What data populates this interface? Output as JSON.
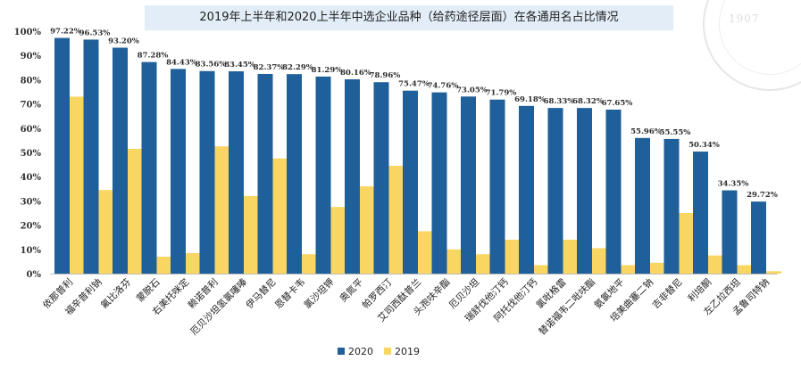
{
  "chart_data": {
    "type": "bar",
    "title": "2019年上半年和2020上半年中选企业品种（给药途径层面）在各通用名占比情况",
    "categories": [
      "依那普利",
      "福辛普利钠",
      "氟比洛芬",
      "蒙脱石",
      "右美托咪定",
      "赖诺普利",
      "厄贝沙坦氢氯噻嗪",
      "伊马替尼",
      "恩替卡韦",
      "氯沙坦钾",
      "奥氮平",
      "帕罗西汀",
      "艾司西酞普兰",
      "头孢呋辛酯",
      "厄贝沙坦",
      "瑞舒伐他汀钙",
      "阿托伐他汀钙",
      "氯吡格雷",
      "替诺福韦二吡呋酯",
      "氨氯地平",
      "培美曲塞二钠",
      "吉非替尼",
      "利培酮",
      "左乙拉西坦",
      "孟鲁司特钠"
    ],
    "series": [
      {
        "name": "2020",
        "color": "#1f5f9a",
        "values": [
          97.22,
          96.53,
          93.2,
          87.28,
          84.43,
          83.56,
          83.45,
          82.37,
          82.29,
          81.29,
          80.16,
          78.96,
          75.47,
          74.76,
          73.05,
          71.79,
          69.18,
          68.33,
          68.32,
          67.65,
          55.96,
          55.55,
          50.34,
          34.35,
          29.72
        ],
        "labels": [
          "97.22%",
          "96.53%",
          "93.20%",
          "87.28%",
          "84.43%",
          "83.56%",
          "83.45%",
          "82.37%",
          "82.29%",
          "81.29%",
          "80.16%",
          "78.96%",
          "75.47%",
          "74.76%",
          "73.05%",
          "71.79%",
          "69.18%",
          "68.33%",
          "68.32%",
          "67.65%",
          "55.96%",
          "55.55%",
          "50.34%",
          "34.35%",
          "29.72%"
        ]
      },
      {
        "name": "2019",
        "color": "#f9d562",
        "values": [
          73,
          34.5,
          51.5,
          7,
          8.5,
          52.5,
          32,
          47.5,
          8,
          27.5,
          36,
          44.5,
          17.5,
          10,
          8,
          14,
          3.5,
          14,
          10.5,
          3.5,
          4.5,
          25,
          7.5,
          3.5,
          1
        ]
      }
    ],
    "ylim": [
      0,
      100
    ],
    "yticks": [
      "0%",
      "10%",
      "20%",
      "30%",
      "40%",
      "50%",
      "60%",
      "70%",
      "80%",
      "90%",
      "100%"
    ],
    "grid": false,
    "legend_position": "bottom-center"
  },
  "watermark": {
    "year": "1907"
  }
}
